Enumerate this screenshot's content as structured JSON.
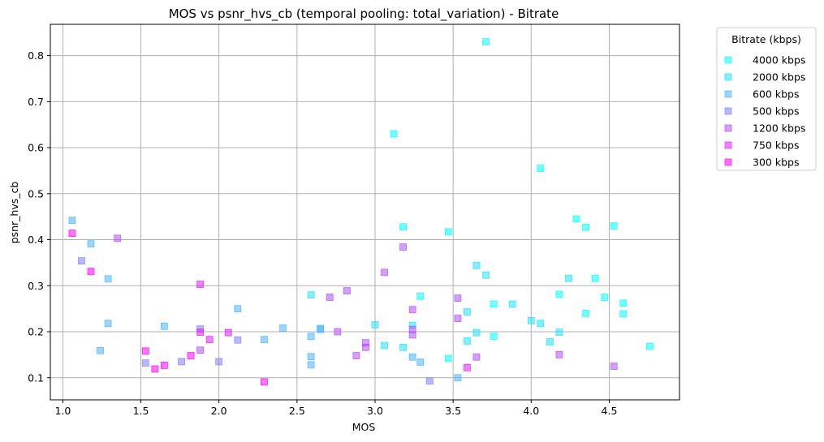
{
  "chart_data": {
    "type": "scatter",
    "title": "MOS vs psnr_hvs_cb (temporal pooling: total_variation) - Bitrate",
    "xlabel": "MOS",
    "ylabel": "psnr_hvs_cb",
    "xlim": [
      0.92,
      4.95
    ],
    "ylim": [
      0.052,
      0.868
    ],
    "xticks": [
      1.0,
      1.5,
      2.0,
      2.5,
      3.0,
      3.5,
      4.0,
      4.5
    ],
    "xtick_labels": [
      "1.0",
      "1.5",
      "2.0",
      "2.5",
      "3.0",
      "3.5",
      "4.0",
      "4.5"
    ],
    "yticks": [
      0.1,
      0.2,
      0.3,
      0.4,
      0.5,
      0.6,
      0.7,
      0.8
    ],
    "ytick_labels": [
      "0.1",
      "0.2",
      "0.3",
      "0.4",
      "0.5",
      "0.6",
      "0.7",
      "0.8"
    ],
    "grid": true,
    "marker": "square",
    "legend_title": "Bitrate (kbps)",
    "legend_position": "outside-top-right",
    "series": [
      {
        "name": "4000 kbps",
        "color": "#00ffff",
        "points": [
          [
            3.71,
            0.83
          ],
          [
            4.06,
            0.555
          ],
          [
            3.12,
            0.63
          ],
          [
            4.29,
            0.445
          ],
          [
            4.35,
            0.427
          ],
          [
            4.53,
            0.43
          ],
          [
            3.18,
            0.428
          ],
          [
            3.47,
            0.417
          ],
          [
            4.41,
            0.316
          ],
          [
            4.18,
            0.281
          ],
          [
            4.47,
            0.275
          ],
          [
            4.59,
            0.262
          ],
          [
            4.59,
            0.239
          ],
          [
            3.29,
            0.277
          ],
          [
            3.76,
            0.26
          ],
          [
            4.35,
            0.24
          ],
          [
            4.76,
            0.168
          ],
          [
            3.47,
            0.142
          ],
          [
            3.76,
            0.19
          ]
        ]
      },
      {
        "name": "2000 kbps",
        "color": "#1ee1ff",
        "points": [
          [
            3.65,
            0.344
          ],
          [
            3.71,
            0.323
          ],
          [
            4.24,
            0.316
          ],
          [
            3.88,
            0.26
          ],
          [
            4.0,
            0.224
          ],
          [
            4.06,
            0.218
          ],
          [
            3.59,
            0.243
          ],
          [
            3.0,
            0.215
          ],
          [
            2.59,
            0.28
          ],
          [
            4.18,
            0.199
          ],
          [
            3.65,
            0.198
          ],
          [
            4.12,
            0.178
          ],
          [
            3.59,
            0.18
          ],
          [
            3.06,
            0.17
          ],
          [
            3.18,
            0.166
          ],
          [
            3.24,
            0.214
          ]
        ]
      },
      {
        "name": "600 kbps",
        "color": "#4bb4ff",
        "points": [
          [
            1.06,
            0.442
          ],
          [
            1.18,
            0.391
          ],
          [
            1.29,
            0.315
          ],
          [
            2.12,
            0.25
          ],
          [
            1.29,
            0.218
          ],
          [
            1.65,
            0.212
          ],
          [
            2.41,
            0.208
          ],
          [
            2.65,
            0.207
          ],
          [
            2.65,
            0.205
          ],
          [
            2.59,
            0.19
          ],
          [
            2.29,
            0.183
          ],
          [
            1.24,
            0.159
          ],
          [
            2.59,
            0.146
          ],
          [
            2.59,
            0.128
          ],
          [
            3.24,
            0.145
          ],
          [
            3.29,
            0.134
          ],
          [
            3.53,
            0.1
          ]
        ]
      },
      {
        "name": "500 kbps",
        "color": "#7f80ff",
        "points": [
          [
            1.12,
            0.354
          ],
          [
            1.88,
            0.206
          ],
          [
            2.12,
            0.182
          ],
          [
            1.53,
            0.132
          ],
          [
            1.76,
            0.135
          ],
          [
            2.0,
            0.135
          ],
          [
            3.35,
            0.093
          ]
        ]
      },
      {
        "name": "1200 kbps",
        "color": "#b34cff",
        "points": [
          [
            1.35,
            0.403
          ],
          [
            3.18,
            0.384
          ],
          [
            3.06,
            0.329
          ],
          [
            2.82,
            0.289
          ],
          [
            2.71,
            0.275
          ],
          [
            3.53,
            0.273
          ],
          [
            3.24,
            0.248
          ],
          [
            3.53,
            0.229
          ],
          [
            3.24,
            0.205
          ],
          [
            3.24,
            0.193
          ],
          [
            2.76,
            0.2
          ],
          [
            1.88,
            0.16
          ],
          [
            2.94,
            0.176
          ],
          [
            2.94,
            0.166
          ],
          [
            2.88,
            0.148
          ],
          [
            3.65,
            0.145
          ],
          [
            4.18,
            0.15
          ],
          [
            4.53,
            0.125
          ]
        ]
      },
      {
        "name": "750 kbps",
        "color": "#e11eff",
        "points": [
          [
            1.88,
            0.303
          ],
          [
            1.88,
            0.199
          ],
          [
            2.06,
            0.198
          ],
          [
            1.94,
            0.183
          ],
          [
            3.59,
            0.122
          ]
        ]
      },
      {
        "name": "300 kbps",
        "color": "#ff00ff",
        "points": [
          [
            1.06,
            0.414
          ],
          [
            1.18,
            0.331
          ],
          [
            1.53,
            0.158
          ],
          [
            1.82,
            0.148
          ],
          [
            1.65,
            0.127
          ],
          [
            1.59,
            0.119
          ],
          [
            2.29,
            0.091
          ]
        ]
      }
    ]
  }
}
